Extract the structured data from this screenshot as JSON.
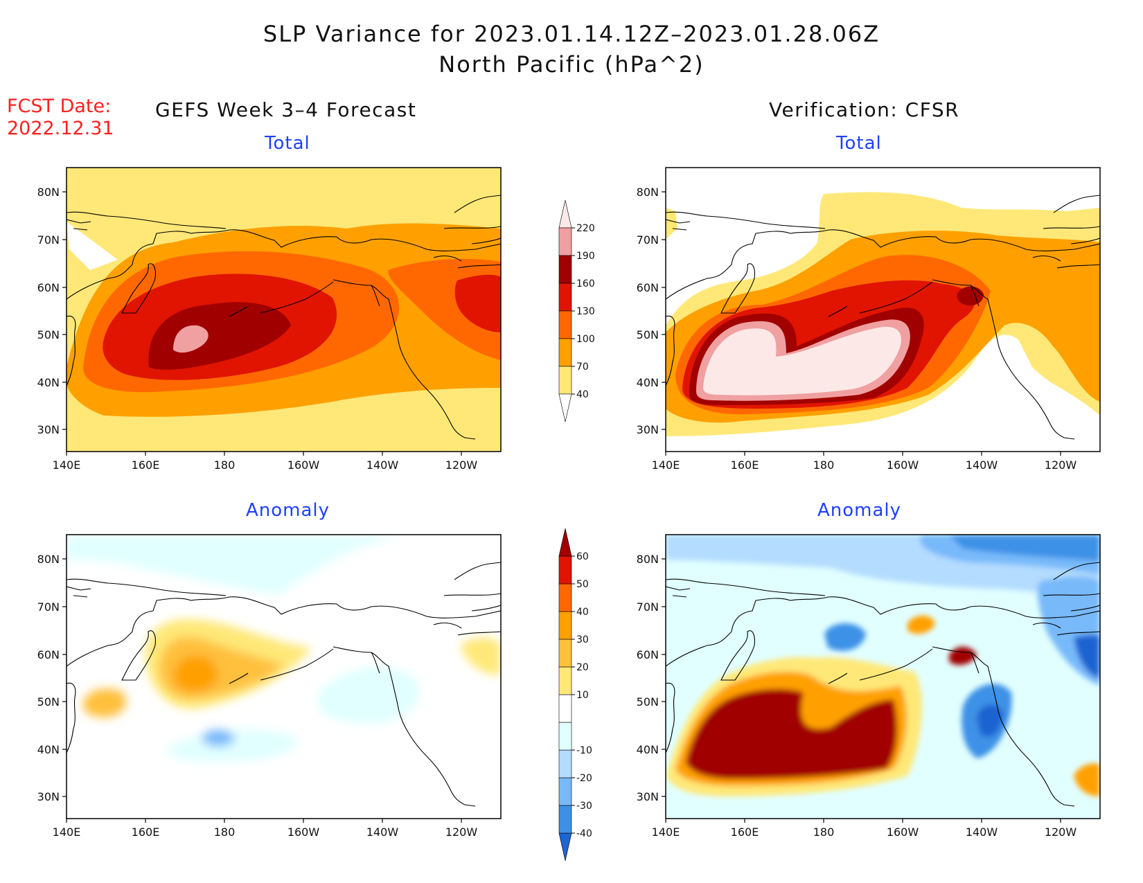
{
  "title": {
    "line1": "SLP Variance for 2023.01.14.12Z–2023.01.28.06Z",
    "line2": "North Pacific (hPa^2)"
  },
  "fcst": {
    "line1": "FCST Date:",
    "line2": "2022.12.31"
  },
  "columns": {
    "left": "GEFS Week 3–4 Forecast",
    "right": "Verification: CFSR"
  },
  "subtitles": {
    "total": "Total",
    "anomaly": "Anomaly"
  },
  "axes": {
    "lon_labels": [
      "140E",
      "160E",
      "180",
      "160W",
      "140W",
      "120W"
    ],
    "lat_labels": [
      "80N",
      "70N",
      "60N",
      "50N",
      "40N",
      "30N"
    ]
  },
  "colorbar_total": {
    "levels": [
      "40",
      "70",
      "100",
      "130",
      "160",
      "190",
      "220"
    ],
    "colors": [
      "#ffe878",
      "#ffa000",
      "#ff6800",
      "#e01400",
      "#a00000",
      "#f0a0a0",
      "#fde8e8"
    ]
  },
  "colorbar_anomaly": {
    "levels": [
      "-40",
      "-30",
      "-20",
      "-10",
      "10",
      "20",
      "30",
      "40",
      "50",
      "60"
    ],
    "colors": [
      "#1e64d2",
      "#3c91e6",
      "#78b9fa",
      "#b4dcff",
      "#e1ffff",
      "#ffffff",
      "#ffe878",
      "#ffc03c",
      "#ffa000",
      "#ff6800",
      "#e01400",
      "#a00000"
    ]
  },
  "colors": {
    "total": [
      "#ffe878",
      "#ffa000",
      "#ff6800",
      "#e01400",
      "#a00000",
      "#f0a0a0",
      "#fde8e8"
    ],
    "anomaly_pos": [
      "#ffe878",
      "#ffc03c",
      "#ffa000",
      "#ff6800",
      "#e01400",
      "#a00000"
    ],
    "anomaly_neg": [
      "#e1ffff",
      "#b4dcff",
      "#78b9fa",
      "#3c91e6",
      "#1e64d2"
    ]
  }
}
